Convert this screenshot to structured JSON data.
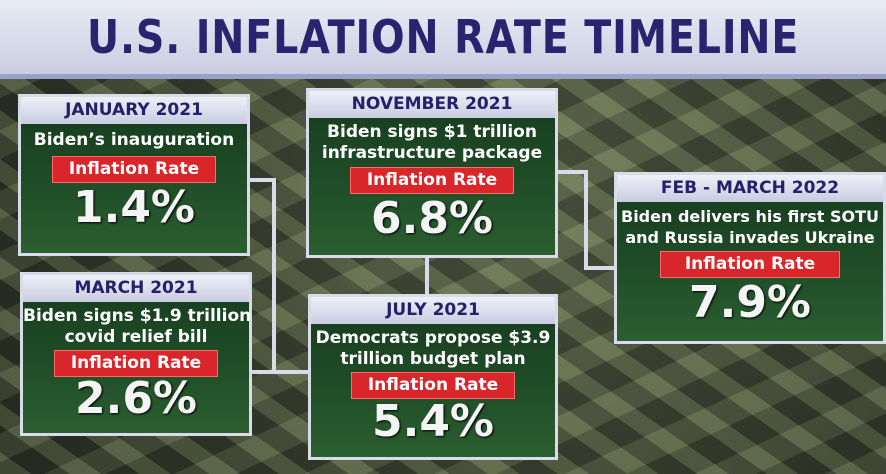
{
  "title": "U.S. INFLATION RATE TIMELINE",
  "badge_label": "Inflation Rate",
  "events": [
    {
      "date": "JANUARY 2021",
      "desc1": "Biden’s inauguration",
      "desc2": "",
      "rate": "1.4%"
    },
    {
      "date": "MARCH 2021",
      "desc1": "Biden signs $1.9 trillion",
      "desc2": "covid relief bill",
      "rate": "2.6%"
    },
    {
      "date": "NOVEMBER 2021",
      "desc1": "Biden signs $1 trillion",
      "desc2": "infrastructure package",
      "rate": "6.8%"
    },
    {
      "date": "JULY 2021",
      "desc1": "Democrats propose $3.9",
      "desc2": "trillion budget plan",
      "rate": "5.4%"
    },
    {
      "date": "FEB - MARCH 2022",
      "desc1": "Biden delivers his first SOTU",
      "desc2": "and Russia invades Ukraine",
      "rate": "7.9%"
    }
  ]
}
